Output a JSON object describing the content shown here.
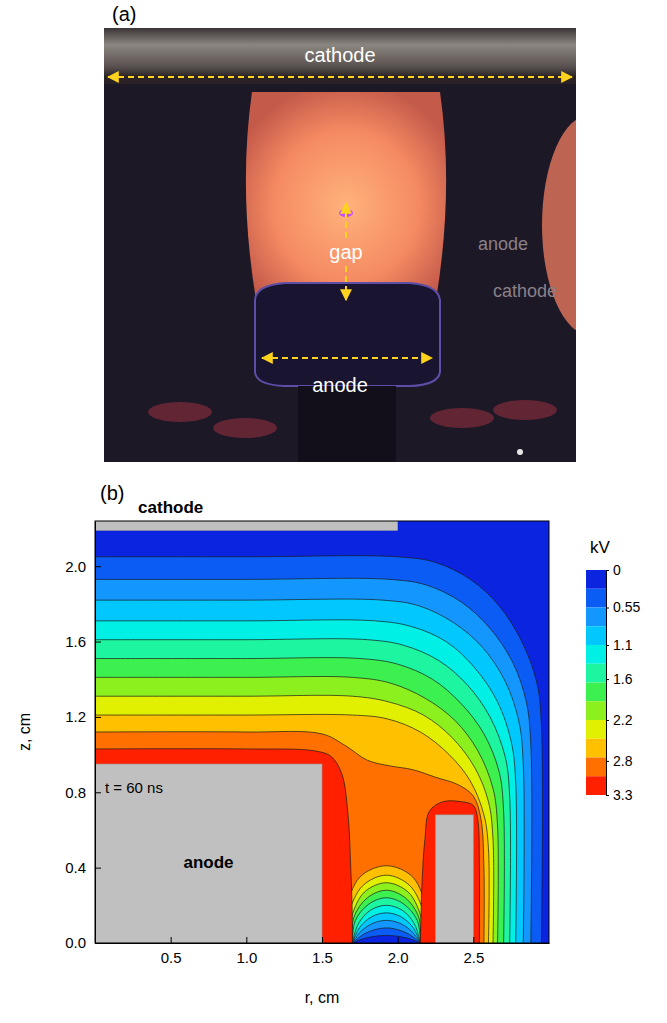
{
  "photo": {
    "label": "(a)",
    "span_labels": [
      "cathode",
      "gap",
      "anode"
    ],
    "reflection_labels": [
      "anode",
      "cathode"
    ]
  },
  "chart_data": {
    "type": "contour",
    "panel_label": "(b)",
    "x_label": "r, cm",
    "y_label": "z, cm",
    "xlim": [
      0,
      3
    ],
    "ylim": [
      0,
      2.24
    ],
    "xticks": [
      0.5,
      {
        "value": 1,
        "label": "1.0"
      },
      1.5,
      {
        "value": 2,
        "label": "2.0"
      },
      2.5
    ],
    "yticks": [
      {
        "value": 0,
        "label": "0.0"
      },
      0.4,
      0.8,
      1.2,
      1.6,
      {
        "value": 2,
        "label": "2.0"
      }
    ],
    "annotations": [
      "t = 60 ns"
    ],
    "electrodes": [
      {
        "label": "cathode",
        "r": [
          0,
          2
        ],
        "z": [
          2.19,
          2.24
        ]
      },
      {
        "label": "anode",
        "r": [
          0,
          1.5
        ],
        "z": [
          0,
          0.95
        ]
      },
      {
        "r": [
          2.25,
          2.5
        ],
        "z": [
          0,
          0.68
        ]
      }
    ],
    "colorbar": {
      "title": "kV",
      "range": [
        0,
        3.3
      ],
      "ticks": [
        0,
        0.55,
        1.1,
        1.6,
        2.2,
        2.8,
        3.3
      ],
      "levels": [
        0,
        0.275,
        0.55,
        0.825,
        1.1,
        1.375,
        1.65,
        1.925,
        2.2,
        2.475,
        2.75,
        3.025,
        3.3
      ],
      "colors": [
        "#0b24e0",
        "#0b5cf5",
        "#1496ff",
        "#00c8ff",
        "#00f0e6",
        "#1ef5a0",
        "#3cf050",
        "#8cf01e",
        "#e1f000",
        "#ffc000",
        "#ff7000",
        "#ff2000"
      ]
    },
    "contours": [
      {
        "level": 0.275,
        "lines": [
          {
            "r": [
              0,
              1,
              2,
              2.25,
              2.48,
              2.67,
              2.82,
              2.92,
              2.95,
              2.95
            ],
            "z": [
              2.05,
              2.05,
              2.05,
              2.02,
              1.93,
              1.79,
              1.6,
              1.38,
              1.15,
              0
            ]
          },
          {
            "r": [
              1.7,
              1.77,
              1.85,
              1.925,
              2,
              2.08,
              2.15
            ],
            "z": [
              0,
              0.022,
              0.036,
              0.04,
              0.036,
              0.022,
              0
            ]
          }
        ]
      },
      {
        "level": 0.55,
        "lines": [
          {
            "r": [
              0,
              1,
              1.95,
              2.19,
              2.42,
              2.61,
              2.76,
              2.85,
              2.88,
              2.88
            ],
            "z": [
              1.93,
              1.93,
              1.93,
              1.9,
              1.81,
              1.67,
              1.49,
              1.28,
              1.05,
              0
            ]
          },
          {
            "r": [
              1.7,
              1.77,
              1.85,
              1.925,
              2,
              2.08,
              2.15
            ],
            "z": [
              0,
              0.044,
              0.071,
              0.08,
              0.071,
              0.044,
              0
            ]
          }
        ]
      },
      {
        "level": 0.825,
        "lines": [
          {
            "r": [
              0,
              1,
              1.9,
              2.14,
              2.37,
              2.56,
              2.71,
              2.8,
              2.83,
              2.83
            ],
            "z": [
              1.82,
              1.82,
              1.82,
              1.79,
              1.7,
              1.57,
              1.39,
              1.18,
              0.95,
              0
            ]
          },
          {
            "r": [
              1.7,
              1.76,
              1.84,
              1.925,
              2.01,
              2.09,
              2.15
            ],
            "z": [
              0,
              0.064,
              0.106,
              0.12,
              0.106,
              0.064,
              0
            ]
          }
        ]
      },
      {
        "level": 1.1,
        "lines": [
          {
            "r": [
              0,
              1,
              1.85,
              2.09,
              2.32,
              2.51,
              2.66,
              2.75,
              2.78,
              2.78
            ],
            "z": [
              1.71,
              1.71,
              1.71,
              1.68,
              1.6,
              1.46,
              1.28,
              1.07,
              0.85,
              0
            ]
          },
          {
            "r": [
              1.7,
              1.75,
              1.83,
              1.925,
              2.02,
              2.1,
              2.15
            ],
            "z": [
              0,
              0.084,
              0.14,
              0.16,
              0.14,
              0.084,
              0
            ]
          }
        ]
      },
      {
        "level": 1.375,
        "lines": [
          {
            "r": [
              0,
              1,
              1.8,
              2.04,
              2.27,
              2.46,
              2.61,
              2.71,
              2.74,
              2.74
            ],
            "z": [
              1.61,
              1.61,
              1.61,
              1.58,
              1.5,
              1.37,
              1.2,
              0.99,
              0.78,
              0
            ]
          },
          {
            "r": [
              1.7,
              1.74,
              1.82,
              1.925,
              2.03,
              2.11,
              2.15
            ],
            "z": [
              0,
              0.102,
              0.174,
              0.2,
              0.174,
              0.102,
              0
            ]
          }
        ]
      },
      {
        "level": 1.65,
        "lines": [
          {
            "r": [
              0,
              1,
              1.75,
              2,
              2.23,
              2.42,
              2.57,
              2.67,
              2.7,
              2.7
            ],
            "z": [
              1.51,
              1.51,
              1.51,
              1.48,
              1.4,
              1.27,
              1.11,
              0.91,
              0.7,
              0
            ]
          },
          {
            "r": [
              1.7,
              1.72,
              1.81,
              1.925,
              2.04,
              2.13,
              2.15
            ],
            "z": [
              0,
              0.119,
              0.207,
              0.24,
              0.207,
              0.119,
              0
            ]
          }
        ]
      },
      {
        "level": 1.925,
        "lines": [
          {
            "r": [
              0,
              1,
              1.7,
              1.95,
              2.18,
              2.38,
              2.53,
              2.63,
              2.66,
              2.66
            ],
            "z": [
              1.41,
              1.41,
              1.41,
              1.38,
              1.3,
              1.18,
              1.02,
              0.82,
              0.62,
              0
            ]
          },
          {
            "r": [
              1.7,
              1.71,
              1.8,
              1.925,
              2.05,
              2.14,
              2.15
            ],
            "z": [
              0,
              0.135,
              0.24,
              0.28,
              0.24,
              0.135,
              0
            ]
          }
        ]
      },
      {
        "level": 2.2,
        "lines": [
          {
            "r": [
              0,
              1,
              1.7,
              1.94,
              2.17,
              2.36,
              2.51,
              2.6,
              2.63,
              2.63
            ],
            "z": [
              1.31,
              1.31,
              1.31,
              1.28,
              1.21,
              1.09,
              0.93,
              0.75,
              0.55,
              0
            ]
          },
          {
            "r": [
              1.7,
              1.69,
              1.7,
              1.78,
              1.925,
              2.07,
              2.15,
              2.16,
              2.15
            ],
            "z": [
              0,
              0.08,
              0.15,
              0.27,
              0.32,
              0.27,
              0.15,
              0.08,
              0
            ]
          }
        ]
      },
      {
        "level": 2.475,
        "lines": [
          {
            "r": [
              0,
              1,
              1.7,
              1.93,
              2.15,
              2.34,
              2.48,
              2.57,
              2.6,
              2.6
            ],
            "z": [
              1.21,
              1.21,
              1.21,
              1.19,
              1.12,
              1,
              0.86,
              0.68,
              0.5,
              0
            ]
          },
          {
            "r": [
              1.7,
              1.675,
              1.68,
              1.77,
              1.925,
              2.08,
              2.17,
              2.175,
              2.15
            ],
            "z": [
              0,
              0.11,
              0.165,
              0.305,
              0.36,
              0.305,
              0.165,
              0.11,
              0
            ]
          }
        ]
      },
      {
        "level": 2.75,
        "lines": [
          {
            "r": [
              0,
              1,
              1.5,
              1.65,
              1.8,
              1.95,
              2.1,
              2.25,
              2.4,
              2.5,
              2.55,
              2.57,
              2.57
            ],
            "z": [
              1.12,
              1.12,
              1.11,
              1.05,
              0.97,
              0.94,
              0.92,
              0.88,
              0.84,
              0.78,
              0.66,
              0.4,
              0
            ]
          },
          {
            "r": [
              1.7,
              1.66,
              1.66,
              1.75,
              1.925,
              2.1,
              2.19,
              2.19,
              2.15
            ],
            "z": [
              0,
              0.14,
              0.18,
              0.35,
              0.41,
              0.35,
              0.18,
              0.14,
              0
            ]
          }
        ]
      },
      {
        "level": 3.025,
        "lines": [
          {
            "r": [
              0,
              1,
              1.45,
              1.56,
              1.63,
              1.67,
              1.69,
              1.7,
              1.7
            ],
            "z": [
              1.03,
              1.03,
              1.02,
              0.99,
              0.9,
              0.7,
              0.4,
              0.15,
              0
            ]
          },
          {
            "r": [
              2.15,
              2.16,
              2.18,
              2.21,
              2.3,
              2.42,
              2.5,
              2.53,
              2.54,
              2.54
            ],
            "z": [
              0,
              0.3,
              0.55,
              0.7,
              0.75,
              0.75,
              0.73,
              0.65,
              0.4,
              0
            ]
          }
        ]
      }
    ]
  }
}
